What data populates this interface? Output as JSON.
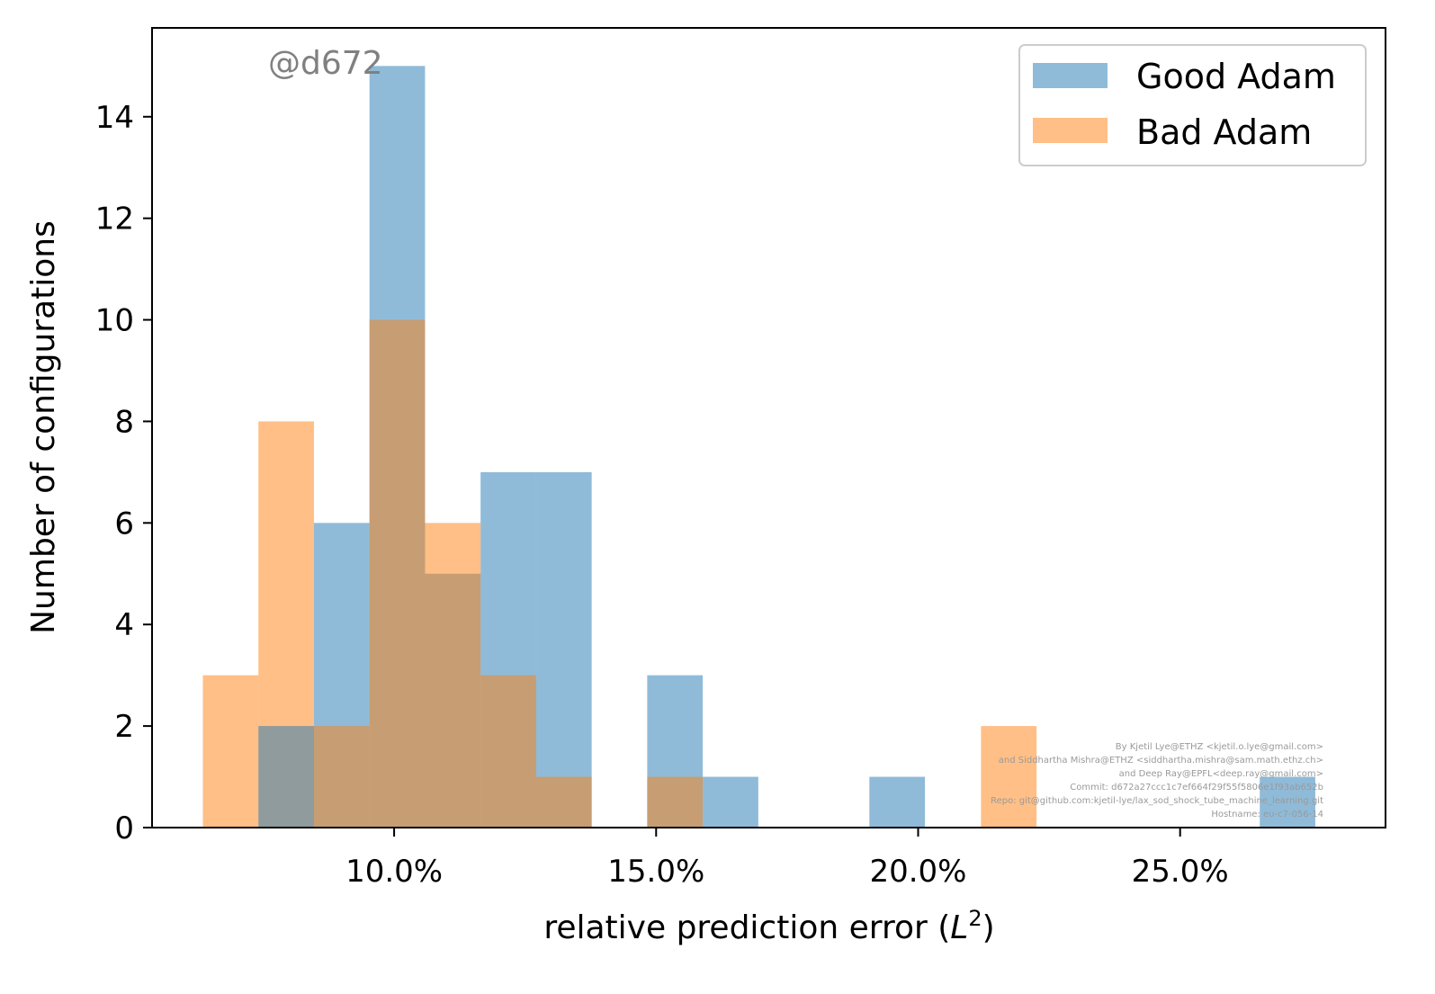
{
  "chart_data": {
    "type": "bar",
    "subtype": "overlapping-histogram",
    "watermark": "@d672",
    "xlabel": "relative prediction error (",
    "xlabel_math": "L",
    "xlabel_sup": "2",
    "xlabel_close": ")",
    "ylabel": "Number of configurations",
    "x_tick_values": [
      0.1,
      0.15,
      0.2,
      0.25
    ],
    "x_tick_labels": [
      "10.0%",
      "15.0%",
      "20.0%",
      "25.0%"
    ],
    "xlim": [
      0.0538,
      0.2892
    ],
    "y_ticks": [
      0,
      2,
      4,
      6,
      8,
      10,
      12,
      14
    ],
    "ylim": [
      0,
      15.75
    ],
    "grid": false,
    "legend_position": "upper right",
    "series": [
      {
        "name": "Good Adam",
        "color": "#1f77b4",
        "opacity": 0.5,
        "bins": [
          {
            "x0": 0.0847,
            "x1": 0.0953,
            "count": 6
          },
          {
            "x0": 0.0953,
            "x1": 0.1059,
            "count": 15
          },
          {
            "x0": 0.1059,
            "x1": 0.1165,
            "count": 5
          },
          {
            "x0": 0.1165,
            "x1": 0.1271,
            "count": 7
          },
          {
            "x0": 0.1271,
            "x1": 0.1377,
            "count": 7
          },
          {
            "x0": 0.1483,
            "x1": 0.1589,
            "count": 3
          },
          {
            "x0": 0.1589,
            "x1": 0.1695,
            "count": 1
          },
          {
            "x0": 0.1907,
            "x1": 0.2013,
            "count": 1
          },
          {
            "x0": 0.2652,
            "x1": 0.2758,
            "count": 1
          }
        ]
      },
      {
        "name": "Bad Adam",
        "color": "#ff7f0e",
        "opacity": 0.5,
        "bins": [
          {
            "x0": 0.0635,
            "x1": 0.0741,
            "count": 3
          },
          {
            "x0": 0.0741,
            "x1": 0.0847,
            "count": 8
          },
          {
            "x0": 0.0847,
            "x1": 0.0953,
            "count": 2
          },
          {
            "x0": 0.0953,
            "x1": 0.1059,
            "count": 10
          },
          {
            "x0": 0.1059,
            "x1": 0.1165,
            "count": 6
          },
          {
            "x0": 0.1165,
            "x1": 0.1271,
            "count": 3
          },
          {
            "x0": 0.1271,
            "x1": 0.1377,
            "count": 1
          },
          {
            "x0": 0.1483,
            "x1": 0.1589,
            "count": 1
          },
          {
            "x0": 0.212,
            "x1": 0.2226,
            "count": 2
          }
        ]
      },
      {
        "name": "",
        "color": "#1f77b4",
        "opacity": 0.5,
        "bins": [
          {
            "x0": 0.0741,
            "x1": 0.0847,
            "count": 2
          }
        ]
      }
    ],
    "credits": [
      "By Kjetil Lye@ETHZ <kjetil.o.lye@gmail.com>",
      "and Siddhartha Mishra@ETHZ <siddhartha.mishra@sam.math.ethz.ch>",
      "and Deep Ray@EPFL<deep.ray@gmail.com>",
      "Commit: d672a27ccc1c7ef664f29f55f5806e1f93ab652b",
      "Repo: git@github.com:kjetil-lye/lax_sod_shock_tube_machine_learning.git",
      "Hostname: eu-c7-056-14"
    ]
  }
}
